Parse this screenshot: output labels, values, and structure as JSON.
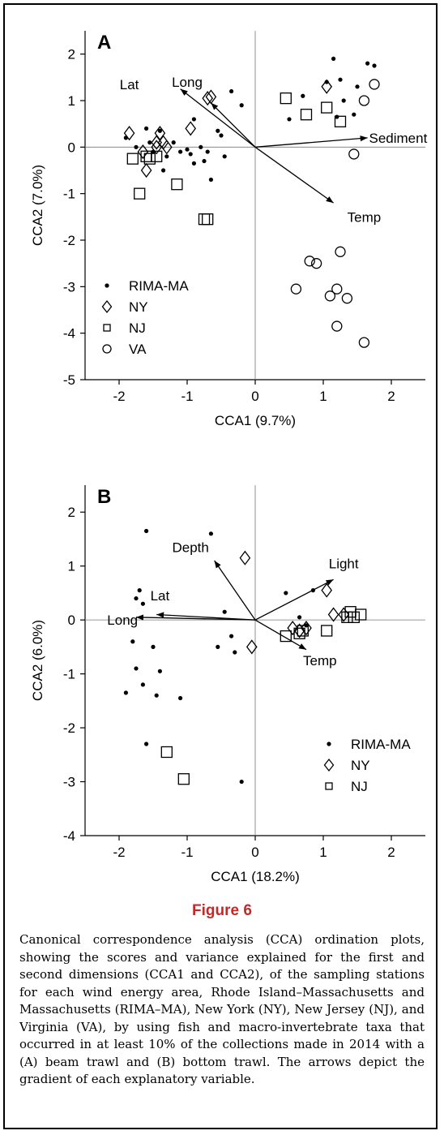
{
  "chart_data": [
    {
      "type": "scatter",
      "panel_label": "A",
      "xlabel": "CCA1 (9.7%)",
      "ylabel": "CCA2 (7.0%)",
      "xlim": [
        -2.5,
        2.5
      ],
      "ylim": [
        -5,
        2.5
      ],
      "xticks": [
        -2,
        -1,
        0,
        1,
        2
      ],
      "yticks": [
        -5,
        -4,
        -3,
        -2,
        -1,
        0,
        1,
        2
      ],
      "legend_position": "bottom-left",
      "series": [
        {
          "name": "RIMA-MA",
          "marker": "dot",
          "points": [
            [
              -1.9,
              0.2
            ],
            [
              -1.75,
              0.0
            ],
            [
              -1.6,
              0.4
            ],
            [
              -1.55,
              0.1
            ],
            [
              -1.5,
              -0.1
            ],
            [
              -1.4,
              0.35
            ],
            [
              -1.3,
              -0.2
            ],
            [
              -1.35,
              -0.5
            ],
            [
              -1.2,
              0.1
            ],
            [
              -1.0,
              -0.05
            ],
            [
              -0.95,
              -0.15
            ],
            [
              -0.9,
              -0.35
            ],
            [
              -0.8,
              0.0
            ],
            [
              -0.75,
              -0.3
            ],
            [
              -0.7,
              -0.1
            ],
            [
              -0.65,
              -0.7
            ],
            [
              -0.55,
              0.35
            ],
            [
              -0.5,
              0.25
            ],
            [
              -0.45,
              -0.2
            ],
            [
              -0.35,
              1.2
            ],
            [
              -0.2,
              0.9
            ],
            [
              -0.9,
              0.6
            ],
            [
              -1.1,
              -0.1
            ],
            [
              0.5,
              0.6
            ],
            [
              0.7,
              1.1
            ],
            [
              1.05,
              1.4
            ],
            [
              1.15,
              1.9
            ],
            [
              1.25,
              1.45
            ],
            [
              1.3,
              1.0
            ],
            [
              1.45,
              0.7
            ],
            [
              1.5,
              1.3
            ],
            [
              1.65,
              1.8
            ],
            [
              1.75,
              1.75
            ],
            [
              1.2,
              0.65
            ]
          ]
        },
        {
          "name": "NY",
          "marker": "diamond",
          "points": [
            [
              -1.85,
              0.3
            ],
            [
              -1.65,
              -0.1
            ],
            [
              -1.6,
              -0.5
            ],
            [
              -1.45,
              0.1
            ],
            [
              -1.4,
              0.3
            ],
            [
              -1.35,
              0.1
            ],
            [
              -1.45,
              0.0
            ],
            [
              -1.3,
              0.0
            ],
            [
              -0.95,
              0.4
            ],
            [
              -0.7,
              1.05
            ],
            [
              -0.65,
              1.08
            ],
            [
              1.05,
              1.3
            ]
          ]
        },
        {
          "name": "NJ",
          "marker": "square",
          "points": [
            [
              -1.8,
              -0.25
            ],
            [
              -1.7,
              -1.0
            ],
            [
              -1.6,
              -0.2
            ],
            [
              -1.55,
              -0.25
            ],
            [
              -1.45,
              -0.2
            ],
            [
              -1.15,
              -0.8
            ],
            [
              -0.75,
              -1.55
            ],
            [
              -0.7,
              -1.55
            ],
            [
              0.45,
              1.05
            ],
            [
              0.75,
              0.7
            ],
            [
              1.05,
              0.85
            ],
            [
              1.25,
              0.55
            ]
          ]
        },
        {
          "name": "VA",
          "marker": "circle",
          "points": [
            [
              1.6,
              1.0
            ],
            [
              1.75,
              1.35
            ],
            [
              1.45,
              -0.15
            ],
            [
              0.6,
              -3.05
            ],
            [
              0.8,
              -2.45
            ],
            [
              0.9,
              -2.5
            ],
            [
              1.25,
              -2.25
            ],
            [
              1.1,
              -3.2
            ],
            [
              1.2,
              -3.05
            ],
            [
              1.35,
              -3.25
            ],
            [
              1.2,
              -3.85
            ],
            [
              1.6,
              -4.2
            ]
          ]
        }
      ],
      "vectors": [
        {
          "name": "Lat",
          "end": [
            -1.1,
            1.25
          ],
          "label_at": [
            -1.85,
            1.35
          ]
        },
        {
          "name": "Long",
          "end": [
            -0.65,
            0.95
          ],
          "label_at": [
            -1.0,
            1.4
          ]
        },
        {
          "name": "Sediment",
          "end": [
            1.65,
            0.2
          ],
          "label_at": [
            2.1,
            0.2
          ]
        },
        {
          "name": "Temp",
          "end": [
            1.15,
            -1.2
          ],
          "label_at": [
            1.6,
            -1.5
          ]
        }
      ]
    },
    {
      "type": "scatter",
      "panel_label": "B",
      "xlabel": "CCA1 (18.2%)",
      "ylabel": "CCA2 (6.0%)",
      "xlim": [
        -2.5,
        2.5
      ],
      "ylim": [
        -4,
        2.5
      ],
      "xticks": [
        -2,
        -1,
        0,
        1,
        2
      ],
      "yticks": [
        -4,
        -3,
        -2,
        -1,
        0,
        1,
        2
      ],
      "legend_position": "bottom-right",
      "series": [
        {
          "name": "RIMA-MA",
          "marker": "dot",
          "points": [
            [
              -1.9,
              -1.35
            ],
            [
              -1.8,
              -0.4
            ],
            [
              -1.75,
              -0.9
            ],
            [
              -1.75,
              0.4
            ],
            [
              -1.7,
              0.55
            ],
            [
              -1.65,
              -1.2
            ],
            [
              -1.65,
              0.3
            ],
            [
              -1.6,
              1.65
            ],
            [
              -1.5,
              -0.5
            ],
            [
              -1.45,
              -1.4
            ],
            [
              -1.4,
              -0.95
            ],
            [
              -1.1,
              -1.45
            ],
            [
              -1.6,
              -2.3
            ],
            [
              -0.65,
              1.6
            ],
            [
              -0.45,
              0.15
            ],
            [
              -0.35,
              -0.3
            ],
            [
              -0.55,
              -0.5
            ],
            [
              -0.3,
              -0.6
            ],
            [
              -0.2,
              -3.0
            ],
            [
              0.45,
              0.5
            ],
            [
              0.65,
              0.05
            ],
            [
              0.75,
              -0.1
            ],
            [
              0.85,
              0.55
            ]
          ]
        },
        {
          "name": "NY",
          "marker": "diamond",
          "points": [
            [
              -0.15,
              1.15
            ],
            [
              -0.05,
              -0.5
            ],
            [
              0.55,
              -0.15
            ],
            [
              0.65,
              -0.2
            ],
            [
              0.75,
              -0.15
            ],
            [
              1.05,
              0.55
            ],
            [
              1.15,
              0.1
            ],
            [
              1.3,
              0.1
            ]
          ]
        },
        {
          "name": "NJ",
          "marker": "square",
          "points": [
            [
              -1.3,
              -2.45
            ],
            [
              -1.05,
              -2.95
            ],
            [
              0.45,
              -0.3
            ],
            [
              0.65,
              -0.25
            ],
            [
              0.7,
              -0.2
            ],
            [
              1.05,
              -0.2
            ],
            [
              1.35,
              0.05
            ],
            [
              1.4,
              0.15
            ],
            [
              1.45,
              0.05
            ],
            [
              1.55,
              0.1
            ]
          ]
        }
      ],
      "vectors": [
        {
          "name": "Depth",
          "end": [
            -0.6,
            1.1
          ],
          "label_at": [
            -0.95,
            1.35
          ]
        },
        {
          "name": "Light",
          "end": [
            1.15,
            0.75
          ],
          "label_at": [
            1.3,
            1.05
          ]
        },
        {
          "name": "Lat",
          "end": [
            -1.45,
            0.1
          ],
          "label_at": [
            -1.4,
            0.45
          ]
        },
        {
          "name": "Long",
          "end": [
            -1.75,
            0.05
          ],
          "label_at": [
            -1.95,
            0.0
          ]
        },
        {
          "name": "Temp",
          "end": [
            0.75,
            -0.55
          ],
          "label_at": [
            0.95,
            -0.75
          ]
        }
      ]
    }
  ],
  "figure_title": "Figure 6",
  "caption": "Canonical correspondence analysis (CCA) ordination plots, showing the scores and variance explained for the first and second dimensions (CCA1 and CCA2), of the sampling stations for each wind energy area, Rhode Island–Massachusetts and Massachusetts (RIMA–MA), New York (NY), New Jersey (NJ), and Virginia (VA), by using fish and macro-invertebrate taxa that occurred in at least 10% of the collections made in 2014 with a (A) beam trawl and (B) bottom trawl. The arrows depict the gradient of each explanatory variable."
}
